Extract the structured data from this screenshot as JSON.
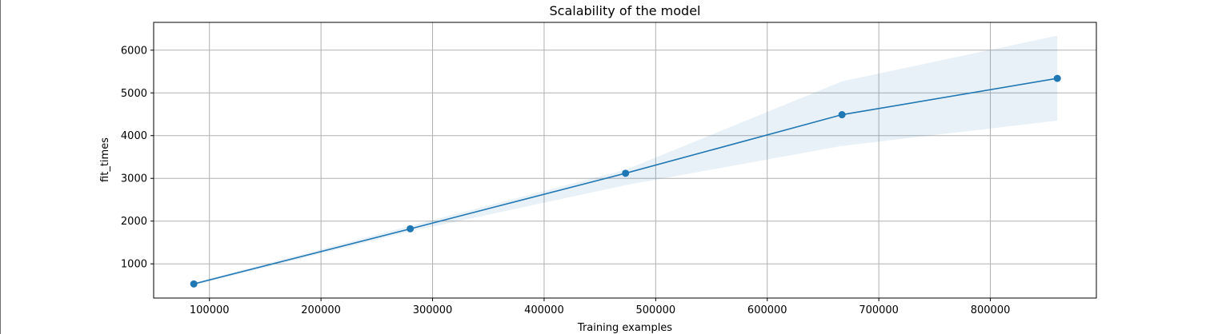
{
  "chart_data": {
    "type": "line",
    "title": "Scalability of the model",
    "xlabel": "Training examples",
    "ylabel": "fit_times",
    "grid": true,
    "xlim": [
      50000,
      895000
    ],
    "ylim": [
      200,
      6650
    ],
    "xticks": [
      100000,
      200000,
      300000,
      400000,
      500000,
      600000,
      700000,
      800000
    ],
    "yticks": [
      1000,
      2000,
      3000,
      4000,
      5000,
      6000
    ],
    "colors": {
      "line": "#1f77b4",
      "band": "#1f77b4",
      "grid": "#b0b0b0"
    },
    "series": [
      {
        "x": [
          86000,
          280000,
          473000,
          667000,
          860000
        ],
        "y": [
          530,
          1820,
          3120,
          4490,
          5340
        ],
        "band_upper": [
          560,
          1890,
          3200,
          5270,
          6340
        ],
        "band_lower": [
          500,
          1760,
          2840,
          3760,
          4350
        ]
      }
    ]
  }
}
